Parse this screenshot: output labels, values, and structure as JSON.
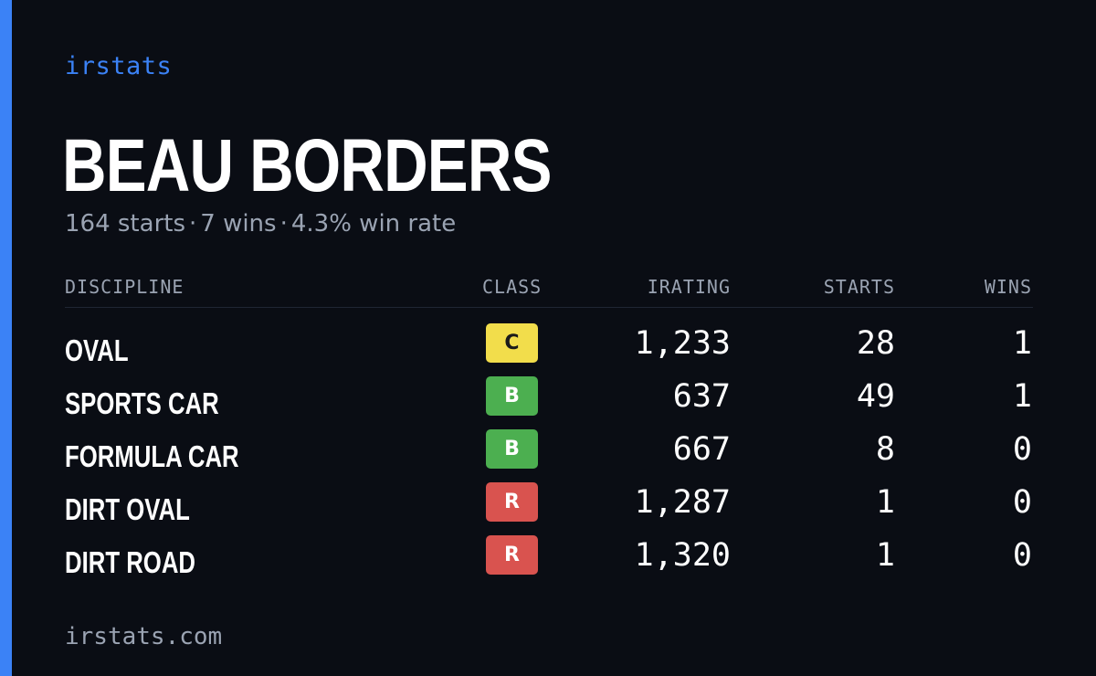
{
  "brand": "irstats",
  "driver": {
    "name": "BEAU BORDERS"
  },
  "summary": {
    "starts": "164 starts",
    "wins": "7 wins",
    "win_rate": "4.3% win rate",
    "separator": "·"
  },
  "table": {
    "headers": {
      "discipline": "DISCIPLINE",
      "class": "CLASS",
      "irating": "IRATING",
      "starts": "STARTS",
      "wins": "WINS"
    },
    "rows": [
      {
        "discipline": "OVAL",
        "class": "C",
        "class_color": "#f2dd4b",
        "class_text_color": "#1a1a1a",
        "irating": "1,233",
        "starts": "28",
        "wins": "1"
      },
      {
        "discipline": "SPORTS CAR",
        "class": "B",
        "class_color": "#4caf50",
        "class_text_color": "#ffffff",
        "irating": "637",
        "starts": "49",
        "wins": "1"
      },
      {
        "discipline": "FORMULA CAR",
        "class": "B",
        "class_color": "#4caf50",
        "class_text_color": "#ffffff",
        "irating": "667",
        "starts": "8",
        "wins": "0"
      },
      {
        "discipline": "DIRT OVAL",
        "class": "R",
        "class_color": "#d9534f",
        "class_text_color": "#ffffff",
        "irating": "1,287",
        "starts": "1",
        "wins": "0"
      },
      {
        "discipline": "DIRT ROAD",
        "class": "R",
        "class_color": "#d9534f",
        "class_text_color": "#ffffff",
        "irating": "1,320",
        "starts": "1",
        "wins": "0"
      }
    ]
  },
  "footer": {
    "url": "irstats.com"
  },
  "colors": {
    "background": "#0a0d14",
    "accent": "#3b82f6",
    "muted_text": "#9aa3b2"
  }
}
